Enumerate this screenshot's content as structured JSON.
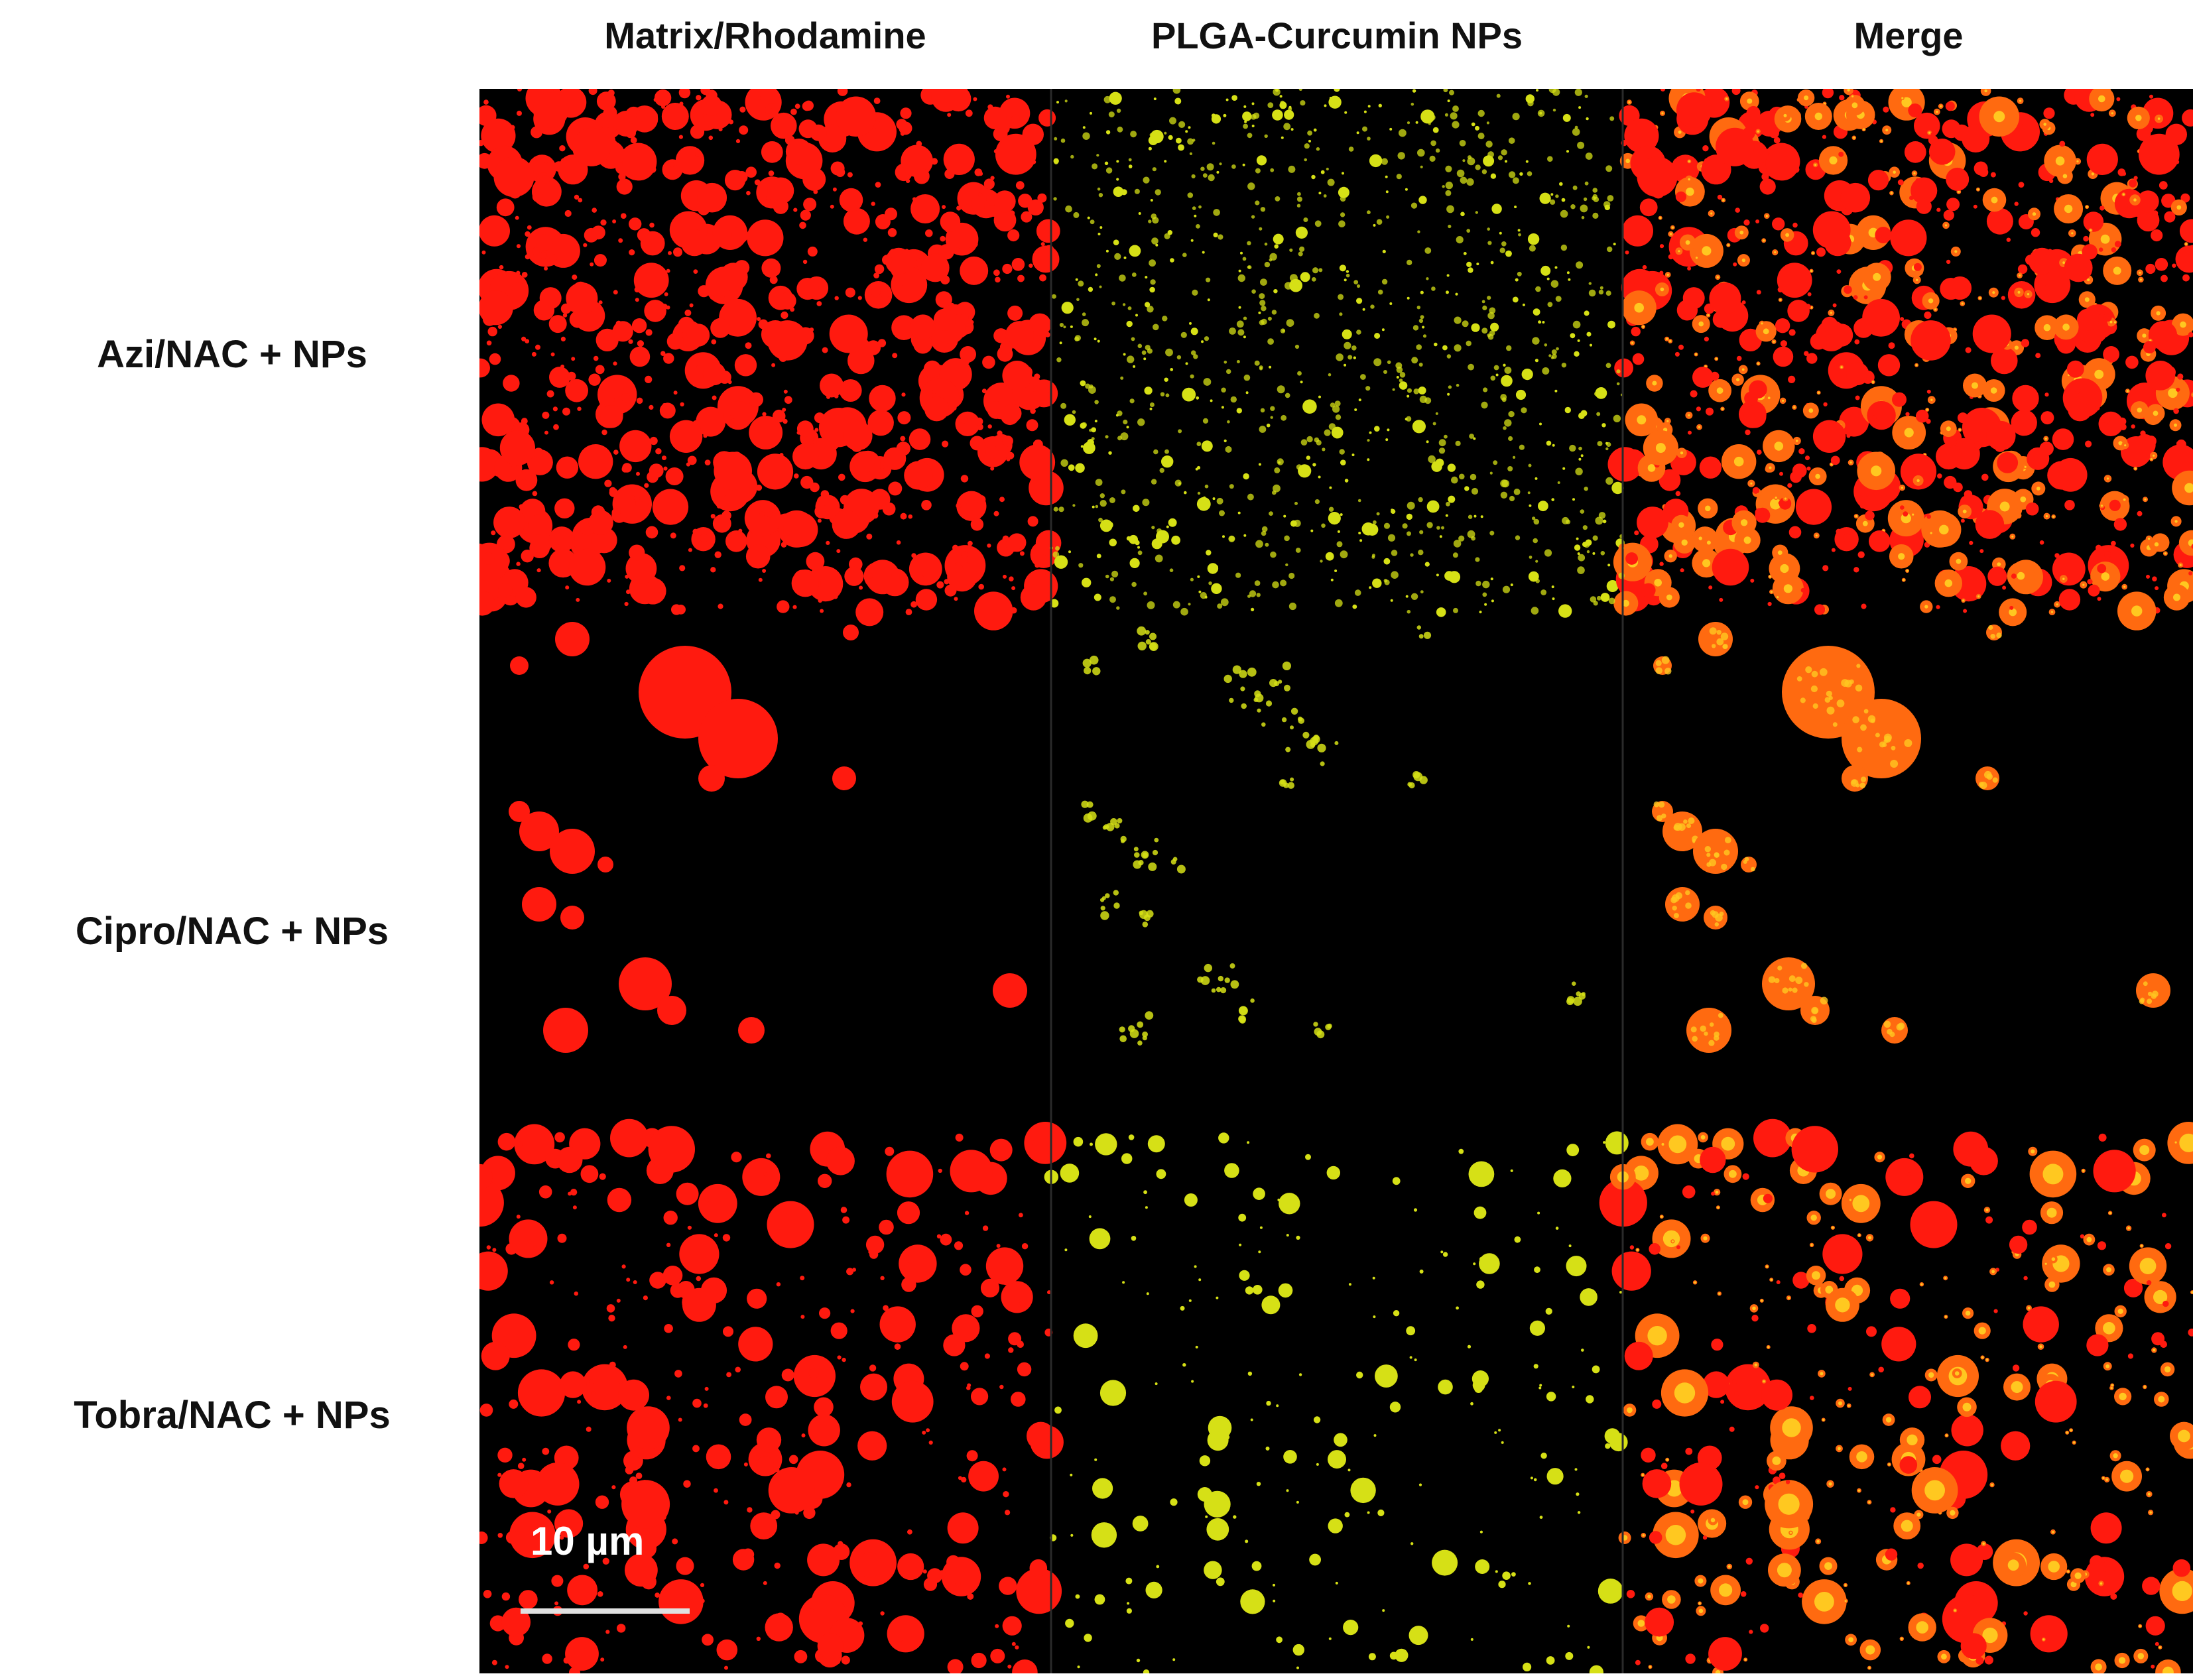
{
  "columns": {
    "matrix": "Matrix/Rhodamine",
    "nps": "PLGA-Curcumin NPs",
    "merge": "Merge"
  },
  "rows": {
    "azi": "Azi/NAC + NPs",
    "cipro": "Cipro/NAC + NPs",
    "tobra": "Tobra/NAC + NPs"
  },
  "scale_bar": {
    "label": "10 µm"
  },
  "colors": {
    "background": "#000000",
    "matrix_red": "#ff1a0f",
    "np_yellow": "#d6e016",
    "merge_orange": "#ff6a10",
    "merge_yellow": "#ffc820",
    "grid_line": "#2a2a2a"
  }
}
